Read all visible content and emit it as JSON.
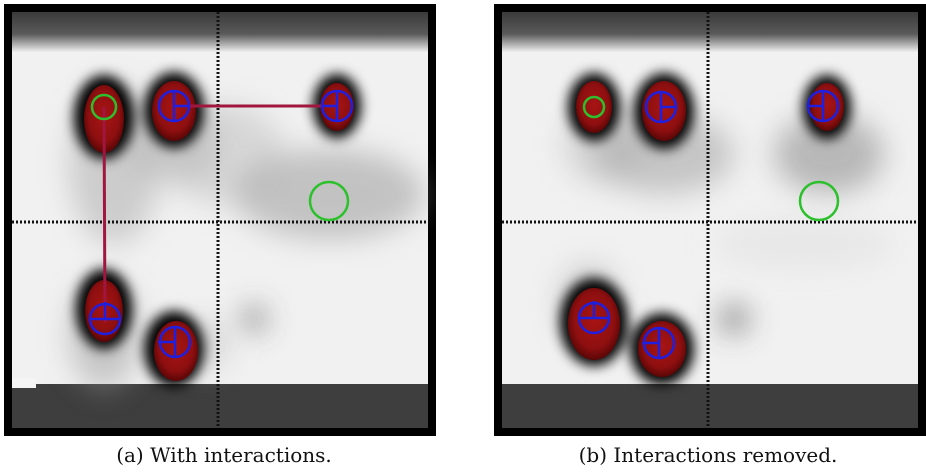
{
  "figure": {
    "panels": [
      {
        "id": "a",
        "caption": "(a) With interactions.",
        "interactions_shown": true,
        "blob_colors": {
          "core": "#8e0f10",
          "halo": "#000000"
        },
        "marker_colors": {
          "blue": "#1f1fe0",
          "green": "#2cc12c",
          "edge": "#a0163e"
        }
      },
      {
        "id": "b",
        "caption": "(b) Interactions removed.",
        "interactions_shown": false,
        "blob_colors": {
          "core": "#8e0f10",
          "halo": "#000000"
        },
        "marker_colors": {
          "blue": "#1f1fe0",
          "green": "#2cc12c"
        }
      }
    ]
  }
}
